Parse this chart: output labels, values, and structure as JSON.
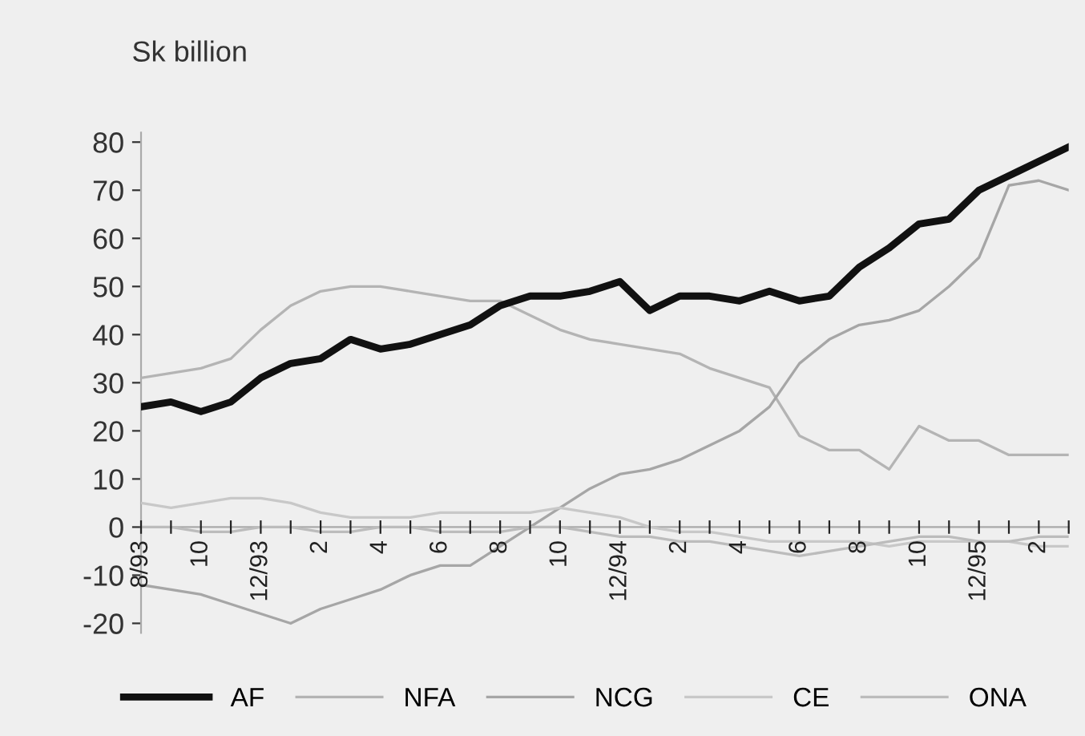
{
  "chart_data": {
    "type": "line",
    "ylabel": "Sk billion",
    "categories": [
      "8/93",
      null,
      "10",
      null,
      "12/93",
      null,
      "2",
      null,
      "4",
      null,
      "6",
      null,
      "8",
      null,
      "10",
      null,
      "12/94",
      null,
      "2",
      null,
      "4",
      null,
      "6",
      null,
      "8",
      null,
      "10",
      null,
      "12/95",
      null,
      "2",
      null
    ],
    "series": [
      {
        "name": "AF",
        "color": "#111111",
        "values": [
          25,
          26,
          24,
          26,
          31,
          34,
          35,
          39,
          37,
          38,
          40,
          42,
          46,
          48,
          48,
          49,
          51,
          45,
          48,
          48,
          47,
          49,
          47,
          48,
          54,
          58,
          63,
          64,
          70,
          73,
          76,
          79
        ]
      },
      {
        "name": "NFA",
        "color": "#b4b4b4",
        "values": [
          31,
          32,
          33,
          35,
          41,
          46,
          49,
          50,
          50,
          49,
          48,
          47,
          47,
          44,
          41,
          39,
          38,
          37,
          36,
          33,
          31,
          29,
          19,
          16,
          16,
          12,
          21,
          18,
          18,
          15,
          15,
          15
        ]
      },
      {
        "name": "NCG",
        "color": "#a6a6a6",
        "values": [
          -12,
          -13,
          -14,
          -16,
          -18,
          -20,
          -17,
          -15,
          -13,
          -10,
          -8,
          -8,
          -4,
          0,
          4,
          8,
          11,
          12,
          14,
          17,
          20,
          25,
          34,
          39,
          42,
          43,
          45,
          50,
          56,
          71,
          72,
          70
        ]
      },
      {
        "name": "CE",
        "color": "#c8c8c8",
        "values": [
          5,
          4,
          5,
          6,
          6,
          5,
          3,
          2,
          2,
          2,
          3,
          3,
          3,
          3,
          4,
          3,
          2,
          0,
          -1,
          -1,
          -2,
          -3,
          -3,
          -3,
          -3,
          -4,
          -3,
          -3,
          -3,
          -3,
          -4,
          -4
        ]
      },
      {
        "name": "ONA",
        "color": "#bcbcbc",
        "values": [
          0,
          0,
          -1,
          -1,
          0,
          0,
          -1,
          -1,
          0,
          0,
          -1,
          -1,
          -1,
          0,
          0,
          -1,
          -2,
          -2,
          -3,
          -3,
          -4,
          -5,
          -6,
          -5,
          -4,
          -3,
          -2,
          -2,
          -3,
          -3,
          -2,
          -2
        ]
      }
    ],
    "ylim": [
      -22,
      82
    ],
    "yticks": [
      -20,
      -10,
      0,
      10,
      20,
      30,
      40,
      50,
      60,
      70,
      80
    ],
    "legend": "bottom",
    "grid": false,
    "marker": "none",
    "line_style": "solid"
  }
}
